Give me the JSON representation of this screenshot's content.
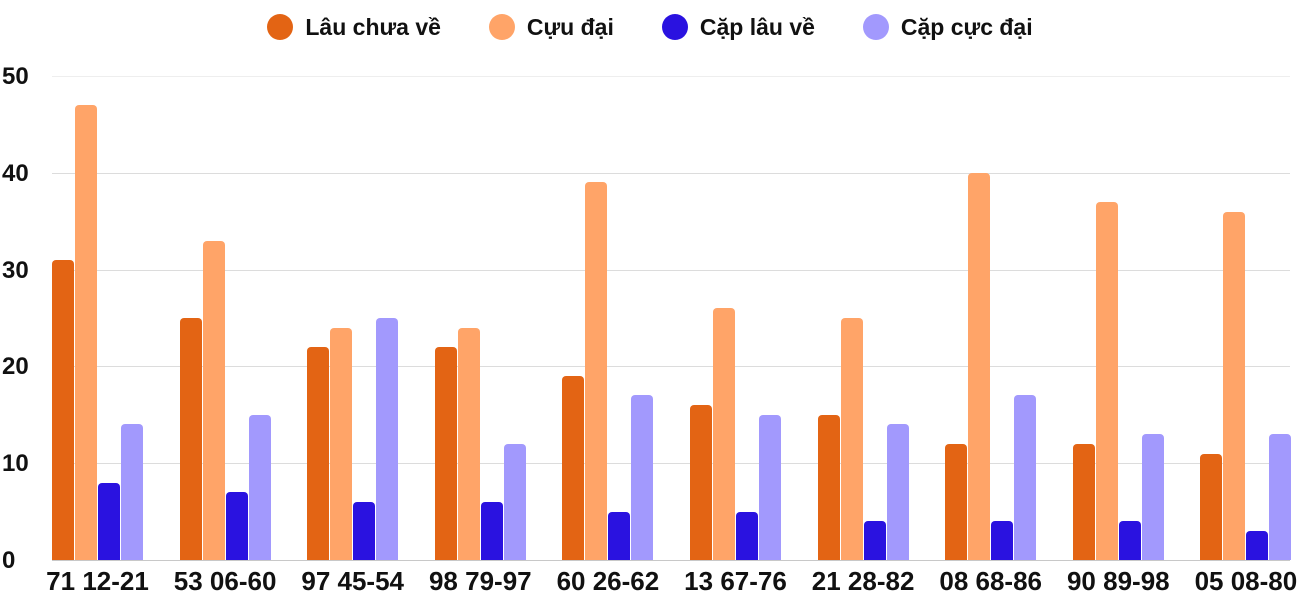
{
  "chart_data": {
    "type": "bar",
    "title": "",
    "xlabel": "",
    "ylabel": "",
    "ylim": [
      0,
      50
    ],
    "yticks": [
      0,
      10,
      20,
      30,
      40,
      50
    ],
    "grid": true,
    "legend_position": "top",
    "categories": [
      "71 12-21",
      "53 06-60",
      "97 45-54",
      "98 79-97",
      "60 26-62",
      "13 67-76",
      "21 28-82",
      "08 68-86",
      "90 89-98",
      "05 08-80"
    ],
    "series": [
      {
        "name": "Lâu chưa về",
        "color": "#e36414",
        "values": [
          31,
          25,
          22,
          22,
          19,
          16,
          15,
          12,
          12,
          11
        ]
      },
      {
        "name": "Cựu đại",
        "color": "#ffa468",
        "values": [
          47,
          33,
          24,
          24,
          39,
          26,
          25,
          40,
          37,
          36
        ]
      },
      {
        "name": "Cặp lâu về",
        "color": "#2a12e0",
        "values": [
          8,
          7,
          6,
          6,
          5,
          5,
          4,
          4,
          4,
          3
        ]
      },
      {
        "name": "Cặp cực đại",
        "color": "#a299fd",
        "values": [
          14,
          15,
          25,
          12,
          17,
          15,
          14,
          17,
          13,
          13
        ]
      }
    ]
  },
  "legend": {
    "items": [
      {
        "label": "Lâu chưa về",
        "color": "#e36414"
      },
      {
        "label": "Cựu đại",
        "color": "#ffa468"
      },
      {
        "label": "Cặp lâu về",
        "color": "#2a12e0"
      },
      {
        "label": "Cặp cực đại",
        "color": "#a299fd"
      }
    ]
  },
  "axis": {
    "y_labels": [
      "0",
      "10",
      "20",
      "30",
      "40",
      "50"
    ]
  }
}
